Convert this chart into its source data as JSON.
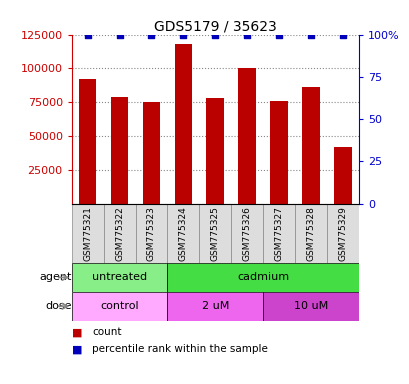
{
  "title": "GDS5179 / 35623",
  "samples": [
    "GSM775321",
    "GSM775322",
    "GSM775323",
    "GSM775324",
    "GSM775325",
    "GSM775326",
    "GSM775327",
    "GSM775328",
    "GSM775329"
  ],
  "counts": [
    92000,
    79000,
    75000,
    118000,
    78000,
    100000,
    76000,
    86000,
    42000
  ],
  "percentile_ranks": [
    100,
    100,
    100,
    100,
    100,
    100,
    100,
    100,
    100
  ],
  "ylim_left": [
    0,
    125000
  ],
  "ylim_right": [
    0,
    100
  ],
  "yticks_left": [
    25000,
    50000,
    75000,
    100000,
    125000
  ],
  "yticks_right": [
    0,
    25,
    50,
    75,
    100
  ],
  "yticklabels_right": [
    "0",
    "25",
    "50",
    "75",
    "100%"
  ],
  "bar_color": "#bb0000",
  "dot_color": "#0000bb",
  "grid_color": "#888888",
  "agent_groups": [
    {
      "label": "untreated",
      "start": 0,
      "end": 3,
      "color": "#88ee88"
    },
    {
      "label": "cadmium",
      "start": 3,
      "end": 9,
      "color": "#44dd44"
    }
  ],
  "dose_groups": [
    {
      "label": "control",
      "start": 0,
      "end": 3,
      "color": "#ffaaff"
    },
    {
      "label": "2 uM",
      "start": 3,
      "end": 6,
      "color": "#ee66ee"
    },
    {
      "label": "10 uM",
      "start": 6,
      "end": 9,
      "color": "#cc44cc"
    }
  ],
  "agent_label": "agent",
  "dose_label": "dose",
  "legend_count_label": "count",
  "legend_percentile_label": "percentile rank within the sample",
  "tick_label_color_left": "#cc0000",
  "tick_label_color_right": "#0000cc",
  "bar_width": 0.55,
  "n_samples": 9,
  "sample_box_color": "#dddddd",
  "sample_box_edge": "#888888"
}
